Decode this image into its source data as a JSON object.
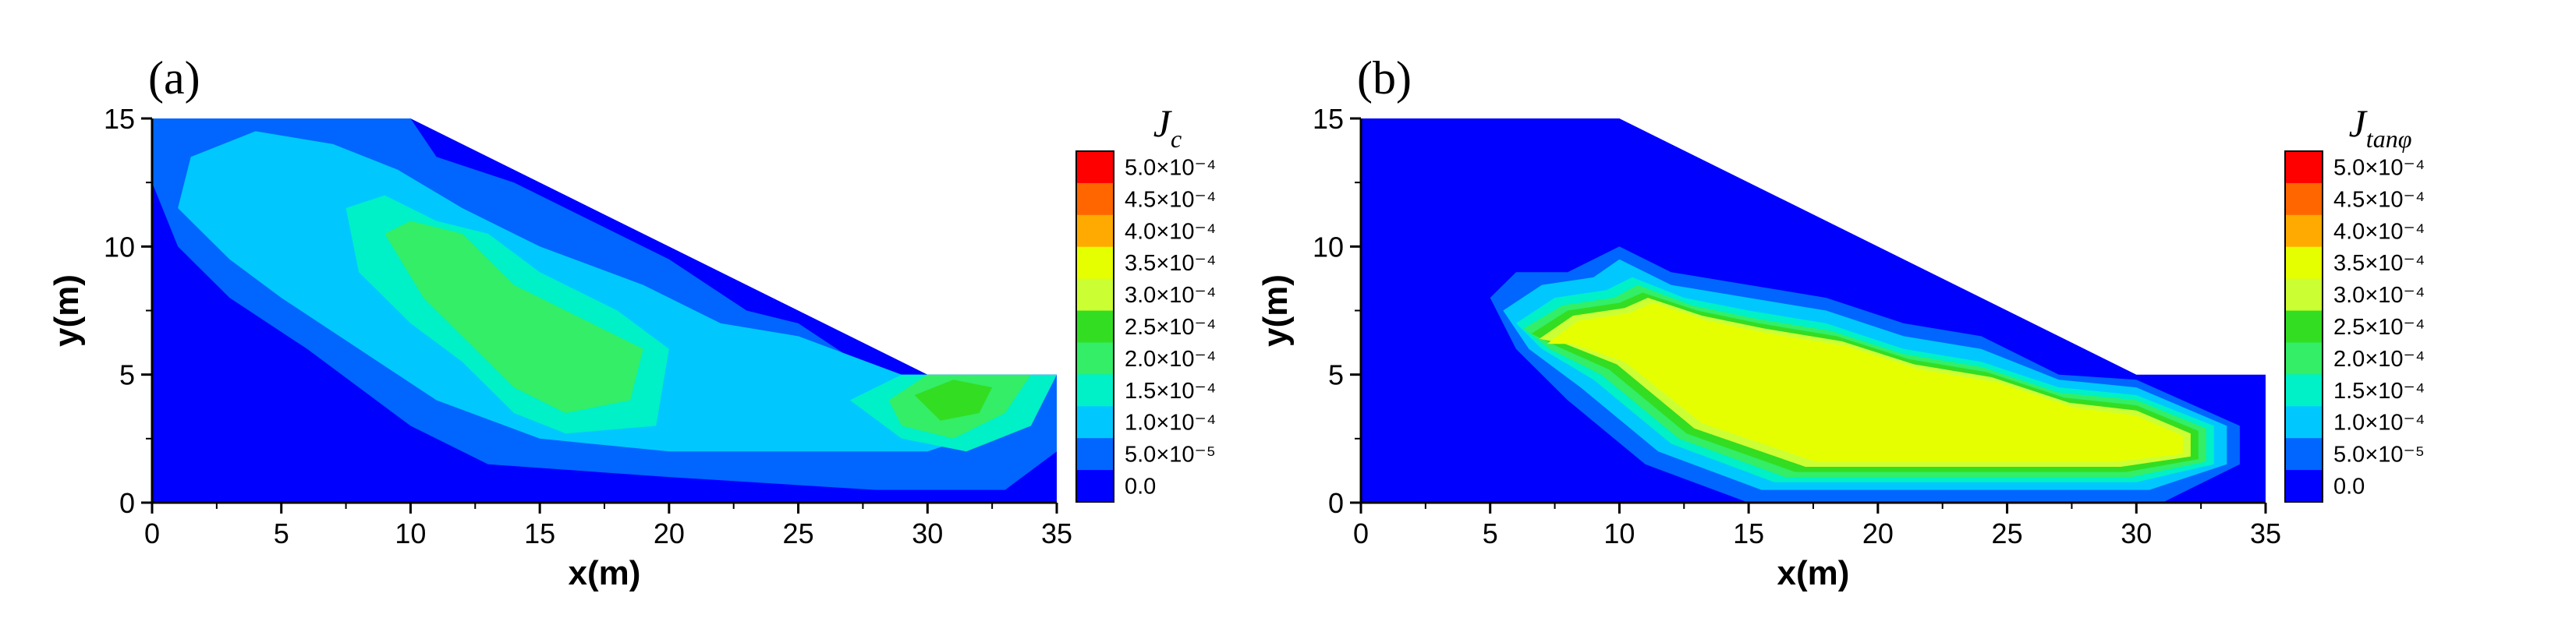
{
  "figure": {
    "panels": [
      {
        "tag": "(a)",
        "legend_title_main": "J",
        "legend_title_sub": "c"
      },
      {
        "tag": "(b)",
        "legend_title_main": "J",
        "legend_title_sub": "tanφ"
      }
    ],
    "colorbar": {
      "labels": [
        "5.0×10⁻⁴",
        "4.5×10⁻⁴",
        "4.0×10⁻⁴",
        "3.5×10⁻⁴",
        "3.0×10⁻⁴",
        "2.5×10⁻⁴",
        "2.0×10⁻⁴",
        "1.5×10⁻⁴",
        "1.0×10⁻⁴",
        "5.0×10⁻⁵",
        "0.0"
      ],
      "colors": [
        "#ff0000",
        "#ff6600",
        "#ffaa00",
        "#e6ff00",
        "#ccff33",
        "#33dd22",
        "#33ee66",
        "#00f0c8",
        "#00c8ff",
        "#0066ff",
        "#0000ff"
      ]
    }
  },
  "chart_data": [
    {
      "type": "heatmap",
      "title": "",
      "xlabel": "x(m)",
      "ylabel": "y(m)",
      "xlim": [
        0,
        35
      ],
      "ylim": [
        0,
        15
      ],
      "x_ticks": [
        "0",
        "5",
        "10",
        "15",
        "20",
        "25",
        "30",
        "35"
      ],
      "y_ticks": [
        "0",
        "5",
        "10",
        "15"
      ],
      "legend_title": "Jc",
      "grid": false,
      "domain_outline": [
        [
          0,
          0
        ],
        [
          35,
          0
        ],
        [
          35,
          5
        ],
        [
          30,
          5
        ],
        [
          10,
          15
        ],
        [
          0,
          15
        ]
      ],
      "levels": [
        0.0,
        5e-05,
        0.0001,
        0.00015,
        0.0002,
        0.00025,
        0.0003,
        0.00035,
        0.0004,
        0.00045,
        0.0005
      ],
      "regions": [
        {
          "level": 5e-05,
          "polygon": [
            [
              0,
              12.5
            ],
            [
              0,
              15
            ],
            [
              2,
              15
            ],
            [
              10,
              15
            ],
            [
              11,
              13.5
            ],
            [
              14,
              12.5
            ],
            [
              17,
              11
            ],
            [
              20,
              9.5
            ],
            [
              23,
              7.5
            ],
            [
              25,
              7
            ],
            [
              28,
              5
            ],
            [
              35,
              5
            ],
            [
              35,
              2
            ],
            [
              33,
              0.5
            ],
            [
              28,
              0.5
            ],
            [
              20,
              1
            ],
            [
              13,
              1.5
            ],
            [
              10,
              3
            ],
            [
              6,
              6
            ],
            [
              3,
              8
            ],
            [
              1,
              10
            ]
          ]
        },
        {
          "level": 0.0001,
          "polygon": [
            [
              1,
              11.5
            ],
            [
              1.5,
              13.5
            ],
            [
              4,
              14.5
            ],
            [
              7,
              14
            ],
            [
              9.5,
              13
            ],
            [
              12,
              11.5
            ],
            [
              15,
              10
            ],
            [
              19,
              8.5
            ],
            [
              22,
              7
            ],
            [
              25,
              6.5
            ],
            [
              29,
              5
            ],
            [
              35,
              5
            ],
            [
              33,
              3
            ],
            [
              30,
              2
            ],
            [
              25,
              2
            ],
            [
              20,
              2
            ],
            [
              15,
              2.5
            ],
            [
              11,
              4
            ],
            [
              8,
              6
            ],
            [
              5,
              8
            ],
            [
              3,
              9.5
            ]
          ]
        },
        {
          "level": 0.00015,
          "polygon": [
            [
              7.5,
              11.5
            ],
            [
              9,
              12
            ],
            [
              11,
              11
            ],
            [
              13,
              10.5
            ],
            [
              15,
              9
            ],
            [
              18,
              7.5
            ],
            [
              20,
              6
            ],
            [
              19.5,
              3
            ],
            [
              16,
              2.7
            ],
            [
              14,
              3.5
            ],
            [
              12,
              5.5
            ],
            [
              10,
              7
            ],
            [
              8,
              9
            ]
          ]
        },
        {
          "level": 0.0002,
          "polygon": [
            [
              9,
              10.5
            ],
            [
              10,
              11
            ],
            [
              12,
              10.5
            ],
            [
              14,
              8.5
            ],
            [
              17,
              7
            ],
            [
              19,
              6
            ],
            [
              18.5,
              4
            ],
            [
              16,
              3.5
            ],
            [
              14,
              4.5
            ],
            [
              12,
              6.5
            ],
            [
              10.5,
              8
            ]
          ]
        },
        {
          "level": 0.00015,
          "polygon": [
            [
              27,
              4
            ],
            [
              29,
              5
            ],
            [
              35,
              5
            ],
            [
              34,
              3
            ],
            [
              31.5,
              2
            ],
            [
              29,
              2.5
            ]
          ]
        },
        {
          "level": 0.0002,
          "polygon": [
            [
              28.5,
              4
            ],
            [
              30,
              5
            ],
            [
              34,
              5
            ],
            [
              33,
              3.5
            ],
            [
              31,
              2.5
            ],
            [
              29,
              3
            ]
          ]
        },
        {
          "level": 0.00025,
          "polygon": [
            [
              29.5,
              4.2
            ],
            [
              31,
              4.8
            ],
            [
              32.5,
              4.5
            ],
            [
              32,
              3.5
            ],
            [
              30.5,
              3.2
            ]
          ]
        }
      ]
    },
    {
      "type": "heatmap",
      "title": "",
      "xlabel": "x(m)",
      "ylabel": "y(m)",
      "xlim": [
        0,
        35
      ],
      "ylim": [
        0,
        15
      ],
      "x_ticks": [
        "0",
        "5",
        "10",
        "15",
        "20",
        "25",
        "30",
        "35"
      ],
      "y_ticks": [
        "0",
        "5",
        "10",
        "15"
      ],
      "legend_title": "Jtanφ",
      "grid": false,
      "domain_outline": [
        [
          0,
          0
        ],
        [
          35,
          0
        ],
        [
          35,
          5
        ],
        [
          30,
          5
        ],
        [
          10,
          15
        ],
        [
          0,
          15
        ]
      ],
      "levels": [
        0.0,
        5e-05,
        0.0001,
        0.00015,
        0.0002,
        0.00025,
        0.0003,
        0.00035,
        0.0004,
        0.00045,
        0.0005
      ],
      "regions": [
        {
          "level": 5e-05,
          "polygon": [
            [
              5,
              8
            ],
            [
              6,
              9
            ],
            [
              8,
              9
            ],
            [
              10,
              10
            ],
            [
              12,
              9
            ],
            [
              15,
              8.5
            ],
            [
              18,
              8
            ],
            [
              21,
              7
            ],
            [
              24,
              6.5
            ],
            [
              27,
              5
            ],
            [
              30,
              4.8
            ],
            [
              34,
              3
            ],
            [
              34,
              1.5
            ],
            [
              31,
              0
            ],
            [
              15,
              0
            ],
            [
              11,
              1.5
            ],
            [
              8,
              4
            ],
            [
              6,
              6
            ]
          ]
        },
        {
          "level": 0.0001,
          "polygon": [
            [
              5.5,
              7.5
            ],
            [
              7,
              8.5
            ],
            [
              9,
              8.8
            ],
            [
              10,
              9.5
            ],
            [
              12,
              8.5
            ],
            [
              15,
              8
            ],
            [
              18,
              7.5
            ],
            [
              21,
              6.5
            ],
            [
              24,
              6
            ],
            [
              27,
              4.8
            ],
            [
              30,
              4.5
            ],
            [
              33.5,
              3
            ],
            [
              33.5,
              1.5
            ],
            [
              30.5,
              0.5
            ],
            [
              15.5,
              0.5
            ],
            [
              11.5,
              2
            ],
            [
              8.5,
              4.5
            ],
            [
              6.5,
              6
            ]
          ]
        },
        {
          "level": 0.00015,
          "polygon": [
            [
              6,
              7
            ],
            [
              7.5,
              8
            ],
            [
              9.5,
              8.3
            ],
            [
              10.5,
              8.8
            ],
            [
              12.5,
              8
            ],
            [
              15,
              7.5
            ],
            [
              18,
              7
            ],
            [
              21,
              6
            ],
            [
              24,
              5.5
            ],
            [
              27,
              4.5
            ],
            [
              30,
              4.2
            ],
            [
              33,
              3
            ],
            [
              33,
              1.5
            ],
            [
              30,
              0.8
            ],
            [
              16,
              0.8
            ],
            [
              12,
              2.3
            ],
            [
              9,
              4.8
            ],
            [
              7,
              6
            ]
          ]
        },
        {
          "level": 0.0002,
          "polygon": [
            [
              6.3,
              6.8
            ],
            [
              7.8,
              7.7
            ],
            [
              9.8,
              8
            ],
            [
              10.7,
              8.5
            ],
            [
              12.8,
              7.7
            ],
            [
              15.2,
              7.2
            ],
            [
              18.2,
              6.7
            ],
            [
              21,
              5.8
            ],
            [
              24,
              5.3
            ],
            [
              27,
              4.3
            ],
            [
              30,
              4
            ],
            [
              32.7,
              2.9
            ],
            [
              32.7,
              1.6
            ],
            [
              29.8,
              1
            ],
            [
              16.4,
              1
            ],
            [
              12.3,
              2.5
            ],
            [
              9.3,
              5
            ],
            [
              7.3,
              6
            ]
          ]
        },
        {
          "level": 0.00025,
          "polygon": [
            [
              6.6,
              6.6
            ],
            [
              8,
              7.5
            ],
            [
              10,
              7.8
            ],
            [
              10.9,
              8.2
            ],
            [
              13,
              7.5
            ],
            [
              15.4,
              7
            ],
            [
              18.4,
              6.5
            ],
            [
              21.2,
              5.6
            ],
            [
              24.2,
              5.1
            ],
            [
              27.2,
              4.1
            ],
            [
              30,
              3.8
            ],
            [
              32.4,
              2.8
            ],
            [
              32.4,
              1.7
            ],
            [
              29.6,
              1.2
            ],
            [
              16.8,
              1.2
            ],
            [
              12.6,
              2.7
            ],
            [
              9.6,
              5.2
            ],
            [
              7.6,
              6.1
            ]
          ]
        },
        {
          "level": 0.0003,
          "polygon": [
            [
              6.9,
              6.4
            ],
            [
              8.2,
              7.3
            ],
            [
              10.2,
              7.6
            ],
            [
              11.1,
              8
            ],
            [
              13.2,
              7.3
            ],
            [
              15.6,
              6.8
            ],
            [
              18.6,
              6.3
            ],
            [
              21.4,
              5.4
            ],
            [
              24.4,
              4.9
            ],
            [
              27.4,
              3.9
            ],
            [
              30,
              3.6
            ],
            [
              32.1,
              2.7
            ],
            [
              32.1,
              1.8
            ],
            [
              29.4,
              1.4
            ],
            [
              17.2,
              1.4
            ],
            [
              12.9,
              2.9
            ],
            [
              9.9,
              5.4
            ],
            [
              7.9,
              6.2
            ]
          ]
        },
        {
          "level": 0.00035,
          "polygon": [
            [
              7.2,
              6.2
            ],
            [
              8.4,
              7.1
            ],
            [
              10.4,
              7.4
            ],
            [
              11.3,
              7.8
            ],
            [
              13.4,
              7.1
            ],
            [
              15.8,
              6.6
            ],
            [
              18.8,
              6.1
            ],
            [
              21.6,
              5.2
            ],
            [
              24.6,
              4.7
            ],
            [
              27.6,
              3.7
            ],
            [
              30,
              3.4
            ],
            [
              31.8,
              2.6
            ],
            [
              31.8,
              1.9
            ],
            [
              29.2,
              1.6
            ],
            [
              17.6,
              1.6
            ],
            [
              13.2,
              3.1
            ],
            [
              10.2,
              5.5
            ],
            [
              8.2,
              6.2
            ]
          ]
        }
      ]
    }
  ]
}
